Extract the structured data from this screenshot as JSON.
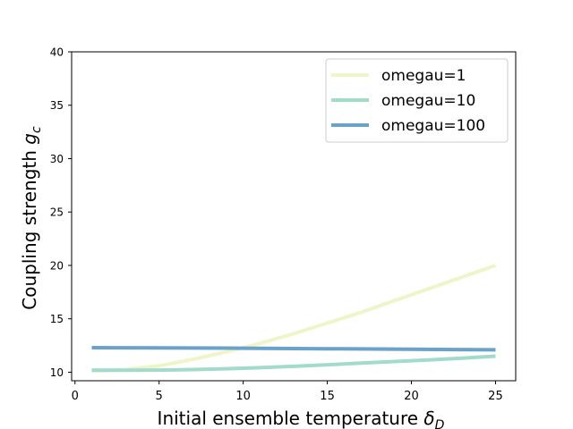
{
  "chart_data": {
    "type": "line",
    "xlabel": "Initial ensemble temperature",
    "xlabel_symbol": "δ",
    "xlabel_sub": "D",
    "ylabel": "Coupling strength",
    "ylabel_symbol": "g",
    "ylabel_sub": "c",
    "xlim": [
      -0.2,
      26.2
    ],
    "ylim": [
      9.2,
      40
    ],
    "xticks": [
      0,
      5,
      10,
      15,
      20,
      25
    ],
    "yticks": [
      10,
      15,
      20,
      25,
      30,
      35,
      40
    ],
    "grid": false,
    "legend_position": "top-right",
    "series": [
      {
        "name": "omegau=1",
        "color": "#eef5c8",
        "x": [
          1,
          3,
          5,
          7,
          9,
          11,
          13,
          15,
          17,
          19,
          21,
          23,
          25
        ],
        "y": [
          10.1,
          10.25,
          10.6,
          11.2,
          11.9,
          12.7,
          13.6,
          14.6,
          15.6,
          16.7,
          17.8,
          18.9,
          20.0
        ]
      },
      {
        "name": "omegau=10",
        "color": "#a2dbcb",
        "x": [
          1,
          3,
          5,
          7,
          9,
          11,
          13,
          15,
          17,
          19,
          21,
          23,
          25
        ],
        "y": [
          10.2,
          10.18,
          10.2,
          10.25,
          10.32,
          10.42,
          10.55,
          10.7,
          10.85,
          11.0,
          11.15,
          11.32,
          11.5
        ]
      },
      {
        "name": "omegau=100",
        "color": "#6aa2c9",
        "x": [
          1,
          5,
          10,
          15,
          20,
          25
        ],
        "y": [
          12.3,
          12.28,
          12.25,
          12.2,
          12.15,
          12.1
        ]
      }
    ]
  }
}
